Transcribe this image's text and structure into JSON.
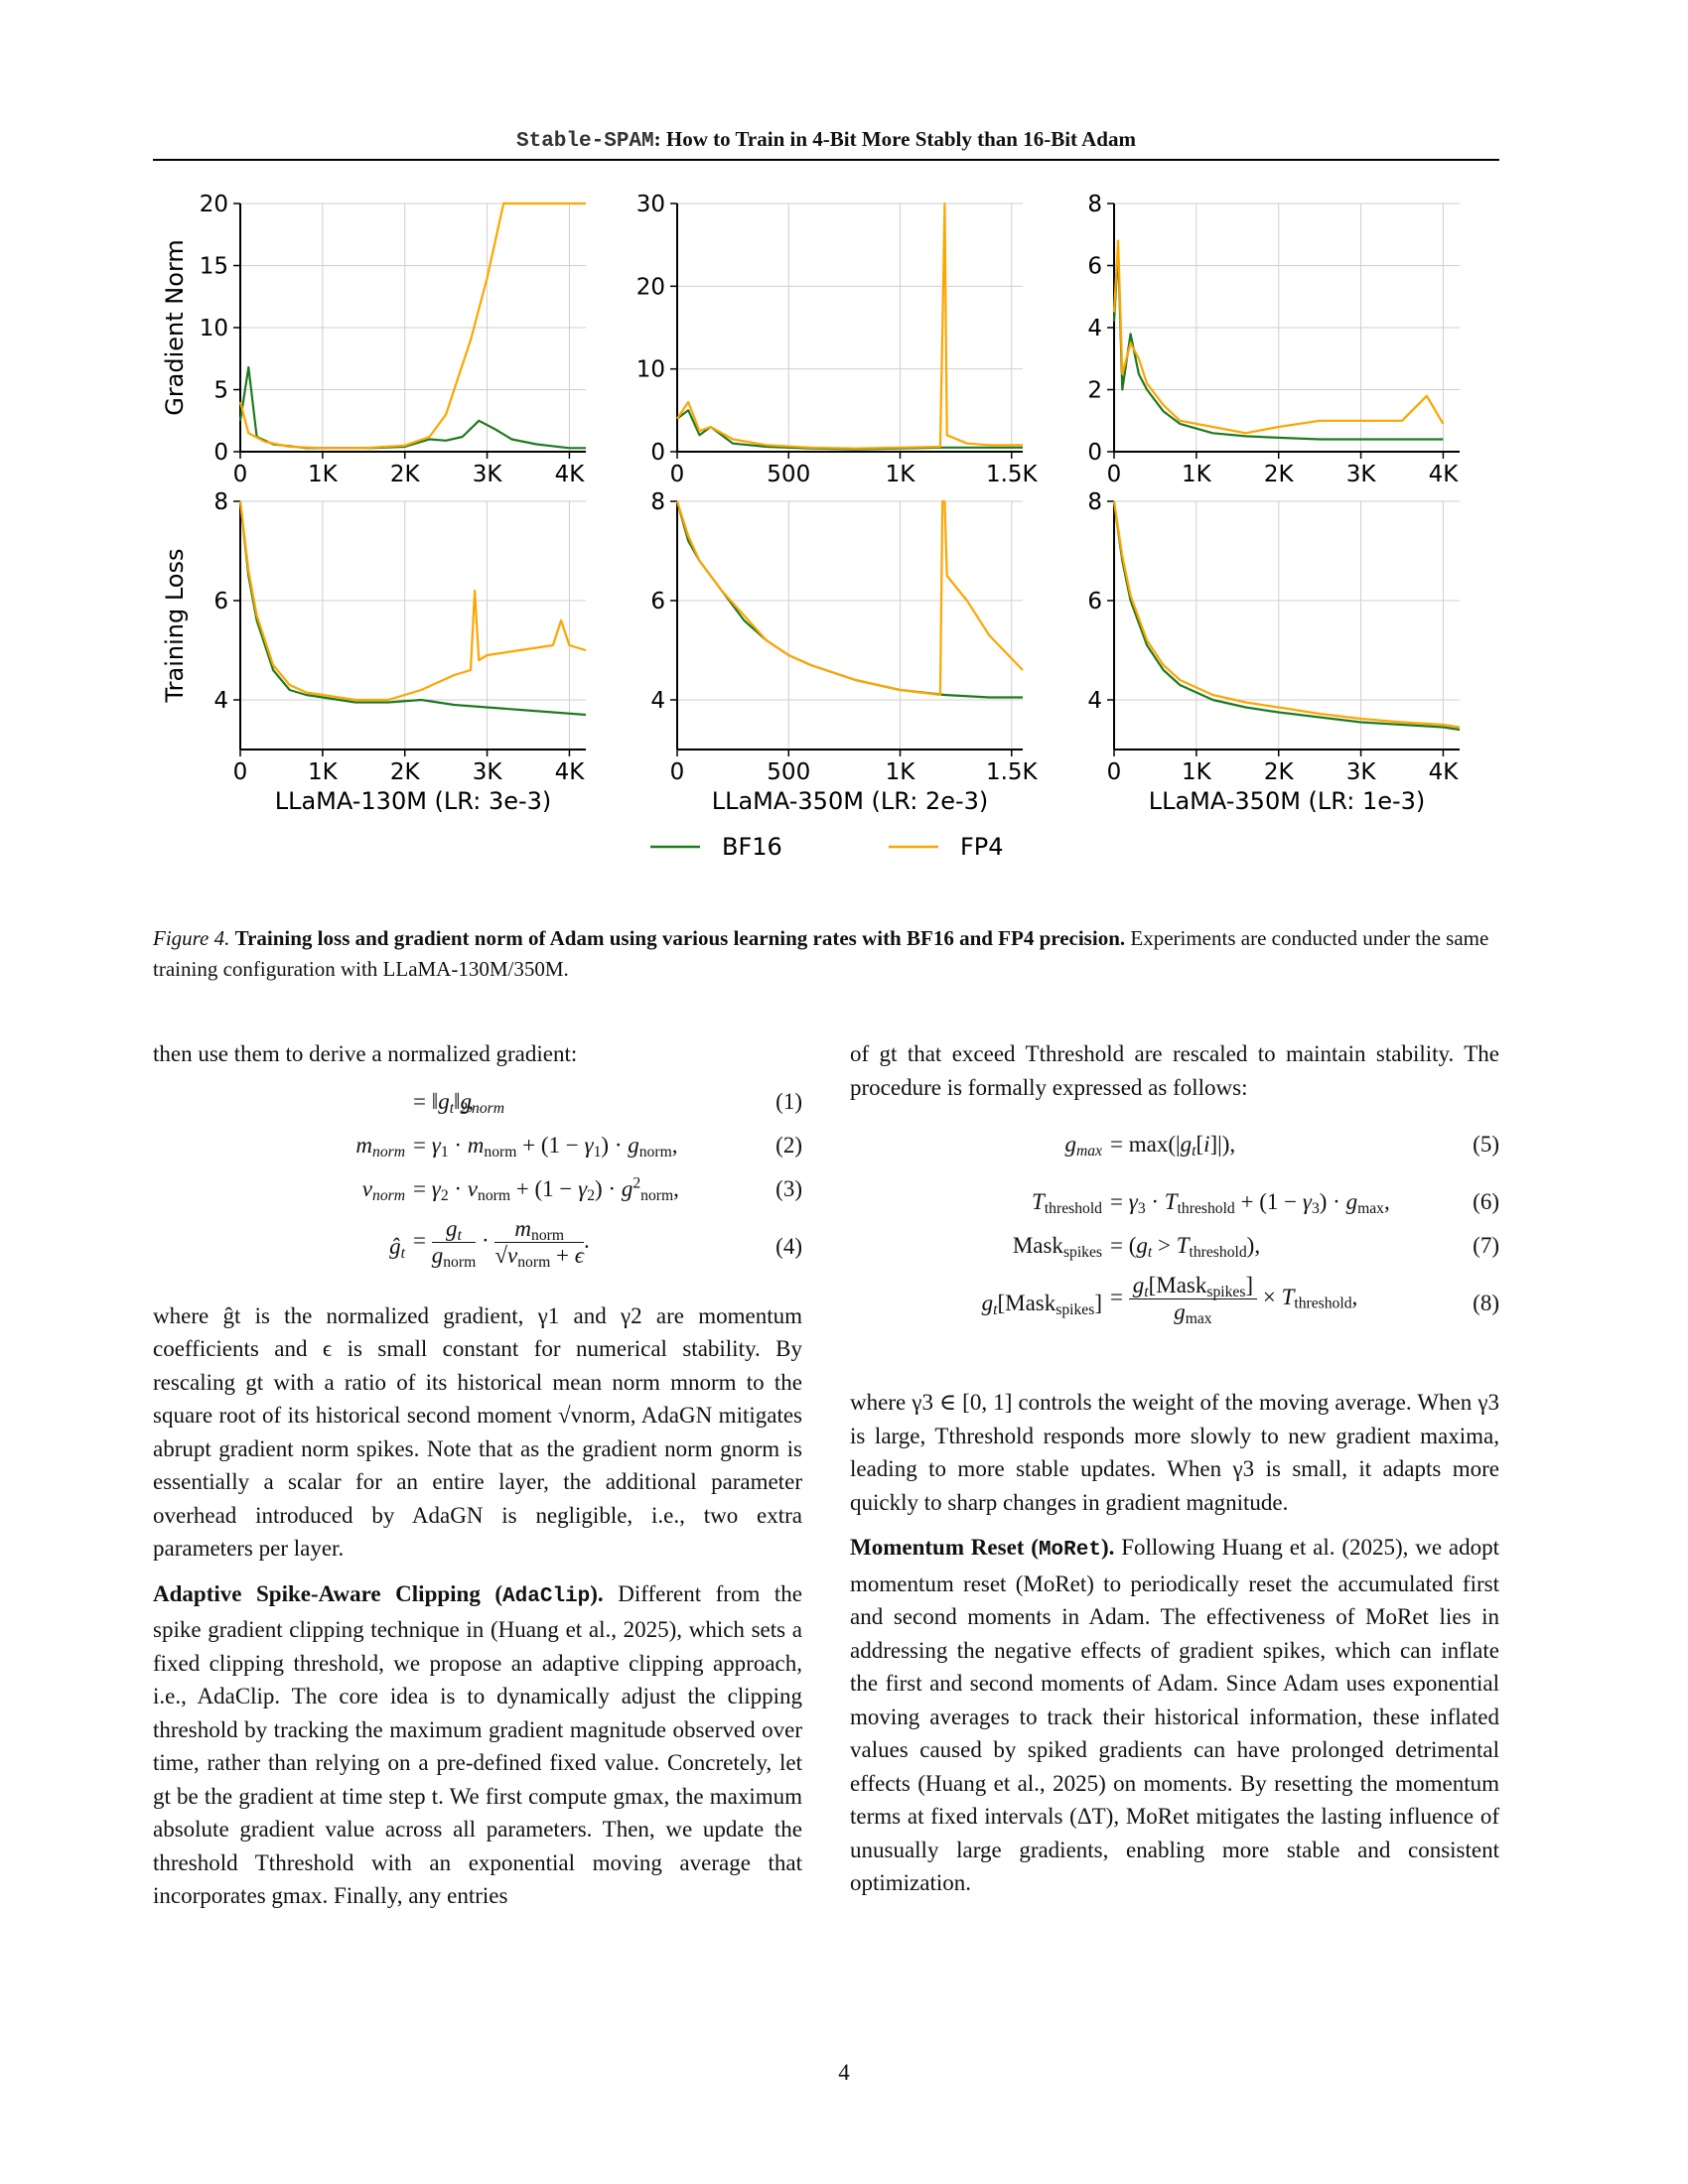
{
  "running_head": {
    "mono": "Stable-SPAM",
    "text": ": How to Train in 4-Bit More Stably than 16-Bit Adam"
  },
  "figure": {
    "legend": [
      "BF16",
      "FP4"
    ],
    "row_ylabels": [
      "Gradient Norm",
      "Training Loss"
    ],
    "colors": {
      "BF16": "#1f7a1f",
      "FP4": "#ffa500"
    }
  },
  "chart_data": [
    {
      "type": "line",
      "panel": "gradient-norm-130m",
      "ylabel": "Gradient Norm",
      "x_ticks": [
        "0",
        "1K",
        "2K",
        "3K",
        "4K"
      ],
      "xlim": [
        0,
        4200
      ],
      "y_ticks": [
        "0",
        "5",
        "10",
        "15",
        "20"
      ],
      "ylim": [
        0,
        20
      ],
      "grid": true,
      "series": [
        {
          "name": "BF16",
          "x": [
            0,
            100,
            200,
            400,
            800,
            1200,
            1600,
            2000,
            2300,
            2500,
            2700,
            2900,
            3100,
            3300,
            3600,
            4000,
            4200
          ],
          "y": [
            2.5,
            6.8,
            1.2,
            0.6,
            0.3,
            0.3,
            0.3,
            0.4,
            1.0,
            0.9,
            1.2,
            2.5,
            1.8,
            1.0,
            0.6,
            0.3,
            0.3
          ]
        },
        {
          "name": "FP4",
          "x": [
            0,
            100,
            300,
            600,
            1000,
            1500,
            2000,
            2300,
            2500,
            2600,
            2800,
            3000,
            3200,
            3400,
            3600,
            3800,
            4000,
            4200
          ],
          "y": [
            4,
            1.5,
            0.8,
            0.4,
            0.3,
            0.3,
            0.5,
            1.2,
            3,
            5,
            9,
            14,
            20,
            20,
            20,
            20,
            20,
            20
          ]
        }
      ]
    },
    {
      "type": "line",
      "panel": "gradient-norm-350m-2e3",
      "x_ticks": [
        "0",
        "500",
        "1K",
        "1.5K"
      ],
      "xlim": [
        0,
        1550
      ],
      "y_ticks": [
        "0",
        "10",
        "20",
        "30"
      ],
      "ylim": [
        0,
        30
      ],
      "grid": true,
      "series": [
        {
          "name": "BF16",
          "x": [
            0,
            50,
            100,
            150,
            250,
            400,
            600,
            800,
            1000,
            1200,
            1400,
            1550
          ],
          "y": [
            4,
            5,
            2,
            3,
            1,
            0.6,
            0.4,
            0.3,
            0.4,
            0.5,
            0.5,
            0.5
          ]
        },
        {
          "name": "FP4",
          "x": [
            0,
            50,
            100,
            150,
            250,
            400,
            600,
            800,
            1000,
            1180,
            1190,
            1200,
            1210,
            1300,
            1400,
            1550
          ],
          "y": [
            4,
            6,
            2.5,
            3,
            1.5,
            0.8,
            0.5,
            0.4,
            0.5,
            0.6,
            15,
            30,
            2,
            1,
            0.8,
            0.8
          ]
        }
      ]
    },
    {
      "type": "line",
      "panel": "gradient-norm-350m-1e3",
      "x_ticks": [
        "0",
        "1K",
        "2K",
        "3K",
        "4K"
      ],
      "xlim": [
        0,
        4200
      ],
      "y_ticks": [
        "0",
        "2",
        "4",
        "6",
        "8"
      ],
      "ylim": [
        0,
        8
      ],
      "grid": true,
      "series": [
        {
          "name": "BF16",
          "x": [
            0,
            50,
            100,
            200,
            300,
            400,
            600,
            800,
            1200,
            1600,
            2000,
            2500,
            3000,
            3500,
            4000
          ],
          "y": [
            4.2,
            6.5,
            2,
            3.8,
            2.5,
            2,
            1.3,
            0.9,
            0.6,
            0.5,
            0.45,
            0.4,
            0.4,
            0.4,
            0.4
          ]
        },
        {
          "name": "FP4",
          "x": [
            0,
            50,
            100,
            200,
            300,
            400,
            600,
            800,
            1200,
            1600,
            2000,
            2500,
            3000,
            3500,
            3800,
            4000
          ],
          "y": [
            4.5,
            6.8,
            2.5,
            3.5,
            3,
            2.2,
            1.5,
            1.0,
            0.8,
            0.6,
            0.8,
            1.0,
            1.0,
            1.0,
            1.8,
            0.9
          ]
        }
      ]
    },
    {
      "type": "line",
      "panel": "training-loss-130m",
      "ylabel": "Training Loss",
      "xlabel": "LLaMA-130M (LR: 3e-3)",
      "x_ticks": [
        "0",
        "1K",
        "2K",
        "3K",
        "4K"
      ],
      "xlim": [
        0,
        4200
      ],
      "y_ticks": [
        "4",
        "6",
        "8"
      ],
      "ylim": [
        3,
        8
      ],
      "grid": true,
      "series": [
        {
          "name": "BF16",
          "x": [
            0,
            100,
            200,
            400,
            600,
            800,
            1000,
            1400,
            1800,
            2200,
            2600,
            3000,
            3400,
            3800,
            4200
          ],
          "y": [
            8,
            6.5,
            5.6,
            4.6,
            4.2,
            4.1,
            4.05,
            3.95,
            3.95,
            4.0,
            3.9,
            3.85,
            3.8,
            3.75,
            3.7
          ]
        },
        {
          "name": "FP4",
          "x": [
            0,
            100,
            200,
            400,
            600,
            800,
            1000,
            1400,
            1800,
            2200,
            2600,
            2800,
            2850,
            2900,
            3000,
            3400,
            3800,
            3900,
            4000,
            4200
          ],
          "y": [
            8,
            6.6,
            5.7,
            4.7,
            4.3,
            4.15,
            4.1,
            4.0,
            4.0,
            4.2,
            4.5,
            4.6,
            6.2,
            4.8,
            4.9,
            5.0,
            5.1,
            5.6,
            5.1,
            5.0
          ]
        }
      ]
    },
    {
      "type": "line",
      "panel": "training-loss-350m-2e3",
      "xlabel": "LLaMA-350M (LR: 2e-3)",
      "x_ticks": [
        "0",
        "500",
        "1K",
        "1.5K"
      ],
      "xlim": [
        0,
        1550
      ],
      "y_ticks": [
        "4",
        "6",
        "8"
      ],
      "ylim": [
        3,
        8
      ],
      "grid": true,
      "series": [
        {
          "name": "BF16",
          "x": [
            0,
            50,
            100,
            200,
            300,
            400,
            500,
            600,
            800,
            1000,
            1200,
            1400,
            1550
          ],
          "y": [
            8,
            7.2,
            6.8,
            6.2,
            5.6,
            5.2,
            4.9,
            4.7,
            4.4,
            4.2,
            4.1,
            4.05,
            4.05
          ]
        },
        {
          "name": "FP4",
          "x": [
            0,
            50,
            100,
            200,
            300,
            400,
            500,
            600,
            800,
            1000,
            1180,
            1190,
            1200,
            1210,
            1300,
            1400,
            1550
          ],
          "y": [
            8,
            7.3,
            6.8,
            6.2,
            5.7,
            5.2,
            4.9,
            4.7,
            4.4,
            4.2,
            4.1,
            8,
            8,
            6.5,
            6.0,
            5.3,
            4.6
          ]
        }
      ]
    },
    {
      "type": "line",
      "panel": "training-loss-350m-1e3",
      "xlabel": "LLaMA-350M (LR: 1e-3)",
      "x_ticks": [
        "0",
        "1K",
        "2K",
        "3K",
        "4K"
      ],
      "xlim": [
        0,
        4200
      ],
      "y_ticks": [
        "4",
        "6",
        "8"
      ],
      "ylim": [
        3,
        8
      ],
      "grid": true,
      "series": [
        {
          "name": "BF16",
          "x": [
            0,
            100,
            200,
            400,
            600,
            800,
            1200,
            1600,
            2000,
            2500,
            3000,
            3500,
            4000,
            4200
          ],
          "y": [
            8,
            6.8,
            6.0,
            5.1,
            4.6,
            4.3,
            4.0,
            3.85,
            3.75,
            3.65,
            3.55,
            3.5,
            3.45,
            3.4
          ]
        },
        {
          "name": "FP4",
          "x": [
            0,
            100,
            200,
            400,
            600,
            800,
            1200,
            1600,
            2000,
            2500,
            3000,
            3500,
            4000,
            4200
          ],
          "y": [
            8,
            6.9,
            6.1,
            5.2,
            4.7,
            4.4,
            4.1,
            3.95,
            3.85,
            3.72,
            3.62,
            3.55,
            3.5,
            3.45
          ]
        }
      ]
    }
  ],
  "caption": {
    "label": "Figure 4.",
    "bold": "Training loss and gradient norm of Adam using various learning rates with BF16 and FP4 precision.",
    "rest": "Experiments are conducted under the same training configuration with LLaMA-130M/350M."
  },
  "left": {
    "intro": "then use them to derive a normalized gradient:",
    "p1": "where ĝt is the normalized gradient, γ1 and γ2 are momentum coefficients and ϵ is small constant for numerical stability. By rescaling gt with a ratio of its historical mean norm mnorm to the square root of its historical second moment √vnorm, AdaGN mitigates abrupt gradient norm spikes. Note that as the gradient norm gnorm is essentially a scalar for an entire layer, the additional parameter overhead introduced by AdaGN is negligible, i.e., two extra parameters per layer.",
    "sec_title": "Adaptive Spike-Aware Clipping (",
    "sec_mono": "AdaClip",
    "sec_close": ").",
    "p2": "Different from the spike gradient clipping technique in (Huang et al., 2025), which sets a fixed clipping threshold, we propose an adaptive clipping approach, i.e., AdaClip. The core idea is to dynamically adjust the clipping threshold by tracking the maximum gradient magnitude observed over time, rather than relying on a pre-defined fixed value. Concretely, let gt be the gradient at time step t. We first compute gmax, the maximum absolute gradient value across all parameters. Then, we update the threshold Tthreshold with an exponential moving average that incorporates gmax. Finally, any entries"
  },
  "right": {
    "intro": "of gt that exceed Tthreshold are rescaled to maintain stability. The procedure is formally expressed as follows:",
    "p1": "where γ3 ∈ [0, 1] controls the weight of the moving average. When γ3 is large, Tthreshold responds more slowly to new gradient maxima, leading to more stable updates. When γ3 is small, it adapts more quickly to sharp changes in gradient magnitude.",
    "sec_title": "Momentum Reset (",
    "sec_mono": "MoRet",
    "sec_close": ").",
    "p2": "Following Huang et al. (2025), we adopt momentum reset (MoRet) to periodically reset the accumulated first and second moments in Adam. The effectiveness of MoRet lies in addressing the negative effects of gradient spikes, which can inflate the first and second moments of Adam. Since Adam uses exponential moving averages to track their historical information, these inflated values caused by spiked gradients can have prolonged detrimental effects (Huang et al., 2025) on moments. By resetting the momentum terms at fixed intervals (ΔT), MoRet mitigates the lasting influence of unusually large gradients, enabling more stable and consistent optimization."
  },
  "equations_left": [
    "(1)",
    "(2)",
    "(3)",
    "(4)"
  ],
  "equations_right": [
    "(5)",
    "(6)",
    "(7)",
    "(8)"
  ],
  "page_number": "4"
}
